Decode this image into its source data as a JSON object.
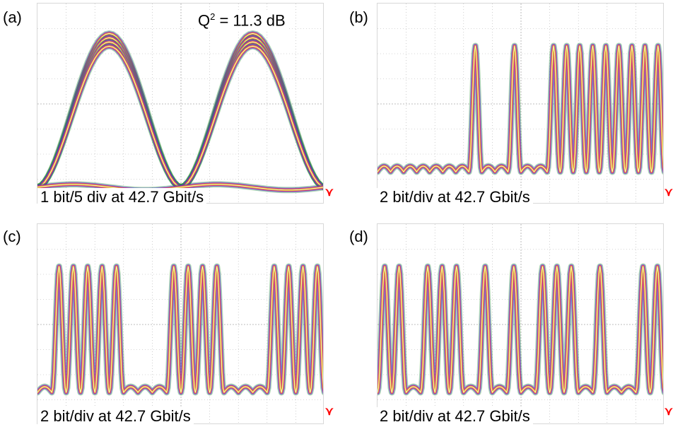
{
  "panels": [
    {
      "id": "a",
      "label": "(a)",
      "caption": "1 bit/5 div at 42.7 Gbit/s",
      "q_label": "Q",
      "q_sup": "2",
      "q_value": " = 11.3 dB",
      "pattern": "",
      "trigger_icon": "trigger-marker-icon"
    },
    {
      "id": "b",
      "label": "(b)",
      "caption": "2 bit/div at 42.7 Gbit/s",
      "pattern": "0000000100100111111111",
      "trigger_icon": "trigger-marker-icon"
    },
    {
      "id": "c",
      "label": "(c)",
      "caption": "2 bit/div at 42.7 Gbit/s",
      "pattern": "01111100011110001111",
      "trigger_icon": "trigger-marker-icon"
    },
    {
      "id": "d",
      "label": "(d)",
      "caption": "2 bit/div at 42.7 Gbit/s",
      "pattern": "11011101010111010011",
      "trigger_icon": "trigger-marker-icon"
    }
  ],
  "colors": {
    "background": "#ffffff",
    "grid": "#b0b0b0",
    "trace_outer": "#2a8f2a",
    "trace_blue": "#3b3bd9",
    "trace_magenta": "#e0208a",
    "trace_orange": "#ef8a3a",
    "trace_yellow": "#d8d81a",
    "trace_core": "#ffffff",
    "trigger": "#ff0000"
  },
  "chart_data": [
    {
      "type": "eye",
      "panel": "a",
      "bit_rate_gbps": 42.7,
      "bits_per_div": 0.2,
      "bits_displayed": 2,
      "q_squared_db": 11.3,
      "levels": {
        "zero": 0.05,
        "one": 0.9
      },
      "grid": true
    },
    {
      "type": "line",
      "panel": "b",
      "bit_rate_gbps": 42.7,
      "bits_per_div": 2,
      "bits": [
        0,
        0,
        0,
        0,
        0,
        0,
        0,
        1,
        0,
        0,
        1,
        0,
        0,
        1,
        1,
        1,
        1,
        1,
        1,
        1,
        1,
        1
      ],
      "grid": true
    },
    {
      "type": "line",
      "panel": "c",
      "bit_rate_gbps": 42.7,
      "bits_per_div": 2,
      "bits": [
        0,
        1,
        1,
        1,
        1,
        1,
        0,
        0,
        0,
        1,
        1,
        1,
        1,
        0,
        0,
        0,
        1,
        1,
        1,
        1
      ],
      "grid": true
    },
    {
      "type": "line",
      "panel": "d",
      "bit_rate_gbps": 42.7,
      "bits_per_div": 2,
      "bits": [
        1,
        1,
        0,
        1,
        1,
        1,
        0,
        1,
        0,
        1,
        0,
        1,
        1,
        1,
        0,
        1,
        0,
        0,
        1,
        1
      ],
      "grid": true
    }
  ]
}
